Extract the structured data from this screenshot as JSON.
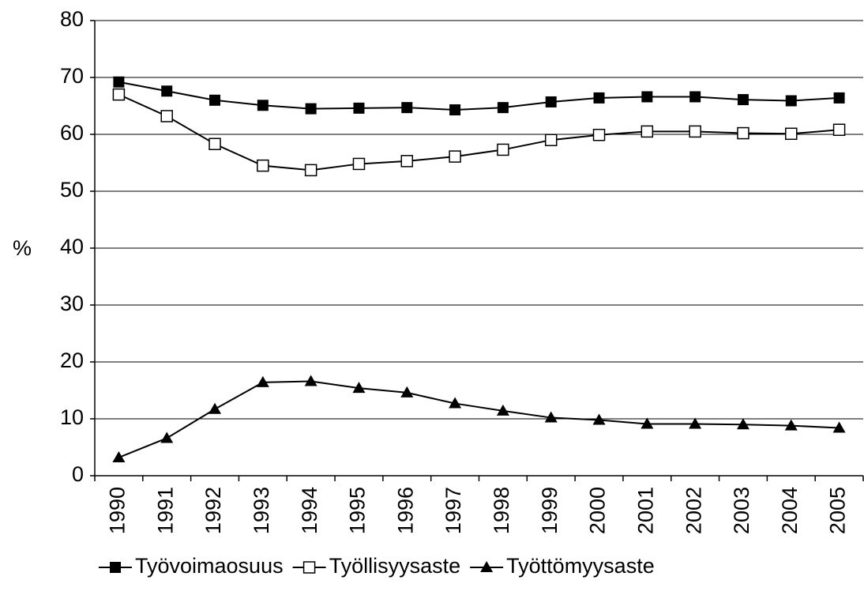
{
  "chart_data": {
    "type": "line",
    "ylabel": "%",
    "categories": [
      "1990",
      "1991",
      "1992",
      "1993",
      "1994",
      "1995",
      "1996",
      "1997",
      "1998",
      "1999",
      "2000",
      "2001",
      "2002",
      "2003",
      "2004",
      "2005"
    ],
    "series": [
      {
        "name": "Työvoimaosuus",
        "color": "#000000",
        "marker": "filled-square",
        "values": [
          69.2,
          67.6,
          66.0,
          65.1,
          64.5,
          64.6,
          64.7,
          64.3,
          64.7,
          65.7,
          66.4,
          66.6,
          66.6,
          66.1,
          65.9,
          66.4
        ]
      },
      {
        "name": "Työllisyysaste",
        "color": "#000000",
        "marker": "hollow-square",
        "values": [
          67.0,
          63.2,
          58.3,
          54.5,
          53.7,
          54.8,
          55.3,
          56.1,
          57.3,
          59.0,
          59.9,
          60.5,
          60.5,
          60.2,
          60.1,
          60.8
        ]
      },
      {
        "name": "Työttömyysaste",
        "color": "#000000",
        "marker": "filled-triangle",
        "values": [
          3.2,
          6.6,
          11.7,
          16.4,
          16.6,
          15.4,
          14.6,
          12.7,
          11.4,
          10.2,
          9.8,
          9.1,
          9.1,
          9.0,
          8.8,
          8.4
        ]
      }
    ],
    "ylim": [
      0,
      80
    ],
    "yticks": [
      0,
      10,
      20,
      30,
      40,
      50,
      60,
      70,
      80
    ],
    "grid": true,
    "legend": "bottom"
  }
}
